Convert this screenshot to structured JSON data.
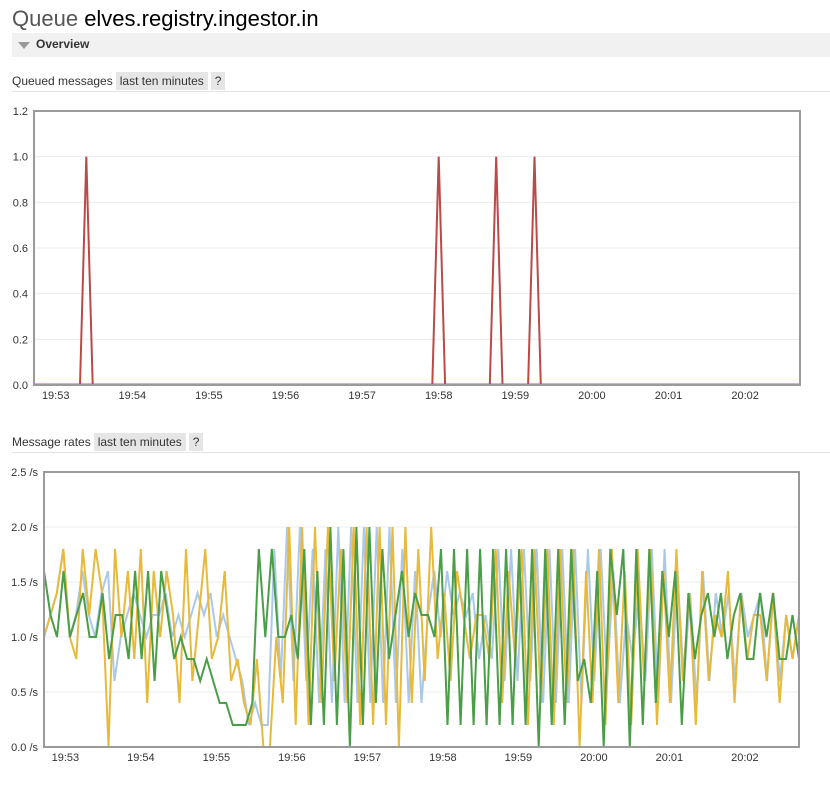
{
  "header": {
    "prefix": "Queue",
    "queue_name": "elves.registry.ingestor.in"
  },
  "overview": {
    "label": "Overview",
    "icon": "triangle-down-icon"
  },
  "queued_section": {
    "title": "Queued messages",
    "range_button": "last ten minutes",
    "help_button": "?"
  },
  "rates_section": {
    "title": "Message rates",
    "range_button": "last ten minutes",
    "help_button": "?"
  },
  "colors": {
    "queued": "#b94a48",
    "queued_baseline": "#e8c14a",
    "rate_yellow": "#e8b93a",
    "rate_green": "#4a9e47",
    "rate_blue": "#aac9e8",
    "rate_purple": "#7a73c9"
  },
  "chart_data": [
    {
      "type": "line",
      "title": "Queued messages",
      "xlabel": "",
      "ylabel": "",
      "x_range": [
        "19:52:43",
        "20:02:43"
      ],
      "xticks": [
        "19:53",
        "19:54",
        "19:55",
        "19:56",
        "19:57",
        "19:58",
        "19:59",
        "20:00",
        "20:01",
        "20:02"
      ],
      "yticks": [
        "0.0",
        "0.2",
        "0.4",
        "0.6",
        "0.8",
        "1.0",
        "1.2"
      ],
      "ylim": [
        0,
        1.2
      ],
      "grid": true,
      "series": [
        {
          "color": "#b94a48",
          "x": [
            "19:52:43",
            "19:53:19",
            "19:53:24",
            "19:53:29",
            "19:57:55",
            "19:58:00",
            "19:58:05",
            "19:58:40",
            "19:58:45",
            "19:58:50",
            "19:59:10",
            "19:59:15",
            "19:59:20",
            "20:02:43"
          ],
          "y": [
            0,
            0,
            1,
            0,
            0,
            1,
            0,
            0,
            1,
            0,
            0,
            1,
            0,
            0
          ]
        }
      ]
    },
    {
      "type": "line",
      "title": "Message rates",
      "xlabel": "",
      "ylabel": "",
      "x_range": [
        "19:52:43",
        "20:02:43"
      ],
      "sample_interval_s": 5,
      "xticks": [
        "19:53",
        "19:54",
        "19:55",
        "19:56",
        "19:57",
        "19:58",
        "19:59",
        "20:00",
        "20:01",
        "20:02"
      ],
      "yticks": [
        "0.0 /s",
        "0.5 /s",
        "1.0 /s",
        "1.5 /s",
        "2.0 /s",
        "2.5 /s"
      ],
      "ylim": [
        0,
        2.5
      ],
      "grid": true,
      "series": [
        {
          "color": "#aac9e8",
          "y": [
            1.0,
            1.2,
            1.4,
            1.8,
            1.0,
            1.2,
            1.6,
            1.2,
            1.0,
            1.4,
            1.6,
            0.6,
            1.0,
            1.2,
            1.4,
            1.2,
            1.0,
            1.2,
            1.2,
            1.4,
            1.0,
            1.2,
            1.0,
            1.2,
            1.4,
            1.2,
            1.4,
            1.0,
            1.2,
            1.0,
            0.8,
            0.6,
            0.2,
            0.4,
            0.2,
            0.2,
            1.8,
            0.6,
            2.0,
            0.6,
            2.0,
            0.6,
            1.8,
            0.4,
            1.8,
            0.4,
            2.0,
            0.4,
            2.0,
            0.4,
            2.0,
            0.4,
            2.0,
            0.4,
            2.0,
            0.4,
            1.8,
            0.4,
            1.6,
            0.4,
            1.2,
            1.6,
            1.0,
            1.6,
            1.2,
            1.4,
            1.2,
            1.4,
            0.8,
            1.2,
            0.8,
            1.8,
            0.6,
            1.8,
            0.6,
            1.8,
            0.6,
            1.8,
            0.4,
            1.8,
            0.4,
            1.8,
            0.4,
            1.8,
            0.4,
            1.8,
            0.6,
            1.8,
            0.6,
            1.6,
            0.4,
            1.2,
            0.8,
            1.4,
            0.6,
            1.8,
            0.4,
            1.8,
            0.4,
            1.6,
            0.6,
            1.4,
            0.4,
            1.6,
            0.6,
            1.4,
            1.0,
            1.4,
            0.6,
            1.4,
            1.0,
            1.2,
            1.4,
            0.6,
            1.4,
            0.6,
            1.2,
            0.8,
            1.2
          ]
        },
        {
          "color": "#e8b93a",
          "y": [
            1.0,
            1.2,
            1.4,
            1.8,
            1.0,
            0.8,
            1.8,
            1.2,
            1.8,
            1.4,
            0.0,
            1.8,
            1.0,
            1.6,
            0.8,
            1.8,
            0.4,
            1.6,
            1.0,
            1.6,
            1.2,
            0.4,
            1.8,
            0.6,
            1.2,
            1.8,
            0.8,
            1.0,
            1.6,
            0.6,
            0.8,
            0.4,
            0.2,
            0.8,
            0.0,
            0.0,
            1.0,
            0.4,
            2.0,
            0.2,
            2.0,
            0.2,
            2.0,
            0.4,
            2.0,
            0.6,
            1.8,
            0.4,
            2.0,
            0.2,
            2.0,
            0.2,
            2.0,
            0.2,
            2.0,
            0.0,
            2.0,
            0.4,
            1.8,
            0.6,
            2.0,
            0.8,
            1.4,
            0.6,
            1.6,
            1.2,
            0.8,
            1.2,
            1.2,
            0.8,
            1.8,
            0.4,
            1.6,
            0.8,
            1.8,
            0.2,
            1.8,
            0.4,
            1.8,
            0.2,
            1.8,
            0.4,
            1.8,
            0.0,
            1.6,
            0.4,
            1.8,
            0.2,
            1.8,
            0.4,
            1.6,
            0.2,
            1.8,
            0.6,
            1.8,
            0.2,
            1.6,
            0.4,
            1.8,
            0.6,
            1.4,
            0.2,
            1.6,
            0.6,
            1.2,
            1.0,
            1.6,
            0.4,
            1.4,
            0.8,
            1.2,
            1.2,
            0.6,
            1.4,
            0.4,
            1.2,
            0.8,
            1.2
          ]
        },
        {
          "color": "#4a9e47",
          "y": [
            1.6,
            1.2,
            1.0,
            1.6,
            1.0,
            1.2,
            1.4,
            1.0,
            1.0,
            1.4,
            0.8,
            1.2,
            1.2,
            0.8,
            1.6,
            0.8,
            1.6,
            0.6,
            1.6,
            1.2,
            0.8,
            1.0,
            0.8,
            0.8,
            0.6,
            0.8,
            0.6,
            0.4,
            0.4,
            0.2,
            0.2,
            0.2,
            0.4,
            1.8,
            1.0,
            1.8,
            1.0,
            1.0,
            1.2,
            0.8,
            1.8,
            0.2,
            1.6,
            0.2,
            2.0,
            0.2,
            1.8,
            0.0,
            2.0,
            0.2,
            2.0,
            0.4,
            1.8,
            0.8,
            1.2,
            1.6,
            1.0,
            1.4,
            1.2,
            1.2,
            1.0,
            1.8,
            0.2,
            1.8,
            0.2,
            1.8,
            0.2,
            1.8,
            0.2,
            1.8,
            0.2,
            1.8,
            0.2,
            1.8,
            0.2,
            1.8,
            0.0,
            1.8,
            0.2,
            1.8,
            0.2,
            1.8,
            0.6,
            0.8,
            0.4,
            1.6,
            0.0,
            1.8,
            1.2,
            1.8,
            0.0,
            1.8,
            0.2,
            1.8,
            0.4,
            1.6,
            1.0,
            1.6,
            0.2,
            1.4,
            0.8,
            1.2,
            1.4,
            1.0,
            1.4,
            0.8,
            1.2,
            1.4,
            0.8,
            0.8,
            1.4,
            1.0,
            1.4,
            0.8,
            0.8,
            1.2,
            0.8
          ]
        },
        {
          "color": "#7a73c9",
          "y": [
            0,
            0
          ]
        }
      ]
    }
  ]
}
